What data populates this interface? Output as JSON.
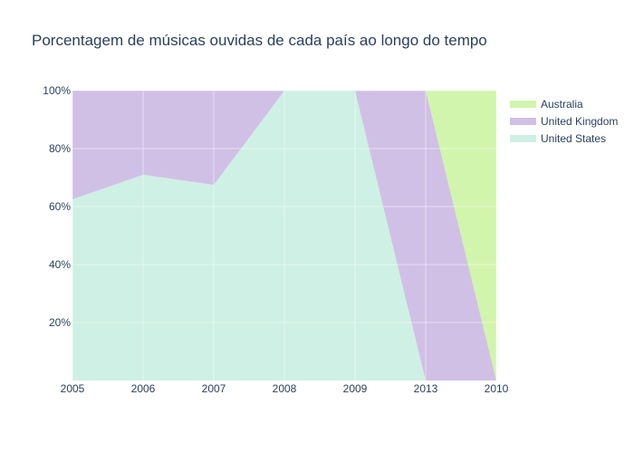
{
  "chart_data": {
    "type": "area",
    "stacked": true,
    "normalized": true,
    "title": "Porcentagem de músicas ouvidas de cada país ao longo do tempo",
    "xlabel": "",
    "ylabel": "",
    "x": [
      "2005",
      "2006",
      "2007",
      "2008",
      "2009",
      "2013",
      "2010"
    ],
    "ylim": [
      0,
      100
    ],
    "y_ticks": [
      20,
      40,
      60,
      80,
      100
    ],
    "y_tick_labels": [
      "20%",
      "40%",
      "60%",
      "80%",
      "100%"
    ],
    "grid": true,
    "legend_position": "right",
    "series": [
      {
        "name": "United States",
        "color": "#cff0e4",
        "values": [
          62.5,
          71,
          67.5,
          100,
          100,
          0,
          0
        ]
      },
      {
        "name": "United Kingdom",
        "color": "#d1c0e5",
        "values": [
          37.5,
          29,
          32.5,
          0,
          0,
          100,
          0
        ]
      },
      {
        "name": "Australia",
        "color": "#d2f5ad",
        "values": [
          0,
          0,
          0,
          0,
          0,
          0,
          100
        ]
      }
    ],
    "legend_order": [
      "Australia",
      "United Kingdom",
      "United States"
    ]
  }
}
